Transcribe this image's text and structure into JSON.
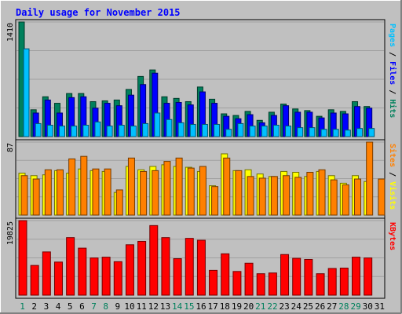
{
  "chart_data": [
    {
      "type": "bar",
      "title": "Daily usage for November 2015",
      "panel_label_parts": [
        "Pages",
        " / ",
        "Files",
        " / ",
        "Hits"
      ],
      "ymax_label": "1410",
      "ylim": [
        0,
        1410
      ],
      "grid": true,
      "categories": [
        "1",
        "2",
        "3",
        "4",
        "5",
        "6",
        "7",
        "8",
        "9",
        "10",
        "11",
        "12",
        "13",
        "14",
        "15",
        "16",
        "17",
        "18",
        "19",
        "20",
        "21",
        "22",
        "23",
        "24",
        "25",
        "26",
        "27",
        "28",
        "29",
        "30",
        "31"
      ],
      "series": [
        {
          "name": "Hits",
          "color": "#00805C",
          "values": [
            1410,
            330,
            490,
            410,
            530,
            530,
            430,
            440,
            450,
            580,
            740,
            820,
            490,
            470,
            430,
            610,
            460,
            280,
            260,
            310,
            200,
            300,
            400,
            340,
            320,
            250,
            330,
            310,
            430,
            370,
            0
          ]
        },
        {
          "name": "Files",
          "color": "#0000FF",
          "values": [
            0,
            290,
            450,
            290,
            480,
            490,
            350,
            410,
            380,
            510,
            640,
            780,
            410,
            420,
            390,
            550,
            410,
            250,
            220,
            270,
            170,
            260,
            380,
            300,
            300,
            230,
            290,
            280,
            370,
            350,
            0
          ]
        },
        {
          "name": "Pages",
          "color": "#00C0FF",
          "values": [
            1080,
            160,
            140,
            130,
            130,
            140,
            180,
            130,
            140,
            130,
            160,
            290,
            210,
            170,
            150,
            150,
            150,
            90,
            160,
            130,
            130,
            140,
            130,
            110,
            110,
            90,
            90,
            80,
            100,
            100,
            0
          ]
        }
      ]
    },
    {
      "type": "bar",
      "panel_label_parts": [
        "Sites",
        " / ",
        "Visits"
      ],
      "ymax_label": "87",
      "ylim": [
        0,
        87
      ],
      "grid": true,
      "categories": [
        "1",
        "2",
        "3",
        "4",
        "5",
        "6",
        "7",
        "8",
        "9",
        "10",
        "11",
        "12",
        "13",
        "14",
        "15",
        "16",
        "17",
        "18",
        "19",
        "20",
        "21",
        "22",
        "23",
        "24",
        "25",
        "26",
        "27",
        "28",
        "29",
        "30",
        "31"
      ],
      "series": [
        {
          "name": "Visits",
          "color": "#FFFF00",
          "values": [
            50,
            47,
            48,
            53,
            50,
            55,
            53,
            52,
            27,
            58,
            54,
            58,
            60,
            58,
            57,
            52,
            35,
            73,
            53,
            54,
            49,
            46,
            52,
            51,
            46,
            52,
            47,
            38,
            47,
            40,
            0
          ]
        },
        {
          "name": "Sites",
          "color": "#FF8000",
          "values": [
            47,
            43,
            54,
            54,
            67,
            70,
            55,
            55,
            30,
            68,
            52,
            53,
            64,
            68,
            56,
            58,
            34,
            68,
            53,
            46,
            44,
            46,
            47,
            45,
            51,
            54,
            42,
            36,
            43,
            87,
            43
          ]
        }
      ]
    },
    {
      "type": "bar",
      "panel_label_parts": [
        "KBytes"
      ],
      "ymax_label": "19825",
      "ylim": [
        0,
        19825
      ],
      "grid": true,
      "categories": [
        "1",
        "2",
        "3",
        "4",
        "5",
        "6",
        "7",
        "8",
        "9",
        "10",
        "11",
        "12",
        "13",
        "14",
        "15",
        "16",
        "17",
        "18",
        "19",
        "20",
        "21",
        "22",
        "23",
        "24",
        "25",
        "26",
        "27",
        "28",
        "29",
        "30",
        "31"
      ],
      "series": [
        {
          "name": "KBytes",
          "color": "#FF0000",
          "values": [
            19825,
            7900,
            11500,
            8800,
            15300,
            12500,
            9900,
            10100,
            8900,
            13400,
            14300,
            18500,
            15300,
            9700,
            15100,
            14600,
            6600,
            11000,
            6300,
            8500,
            5700,
            5900,
            10800,
            9800,
            9500,
            5700,
            7100,
            7200,
            10100,
            9900,
            0
          ]
        }
      ]
    }
  ],
  "x_axis": {
    "labels": [
      "1",
      "2",
      "3",
      "4",
      "5",
      "6",
      "7",
      "8",
      "9",
      "10",
      "11",
      "12",
      "13",
      "14",
      "15",
      "16",
      "17",
      "18",
      "19",
      "20",
      "21",
      "22",
      "23",
      "24",
      "25",
      "26",
      "27",
      "28",
      "29",
      "30",
      "31"
    ],
    "weekend_days": [
      1,
      7,
      8,
      14,
      15,
      21,
      22,
      28,
      29
    ],
    "weekend_color": "#00805C",
    "weekday_color": "#000000"
  },
  "colors": {
    "background": "#C0C0C0",
    "title": "#0000FF",
    "pages": "#00C0FF",
    "files": "#0000FF",
    "hits": "#00805C",
    "sites": "#FF8000",
    "visits": "#FFFF00",
    "kbytes": "#FF0000",
    "separator": "#000000"
  }
}
